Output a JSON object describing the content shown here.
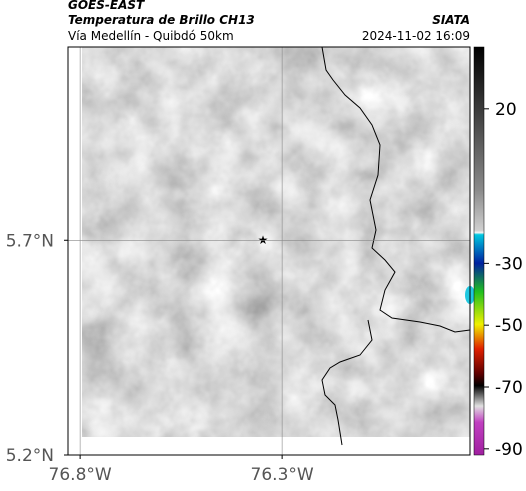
{
  "header": {
    "source": "GOES-EAST",
    "product": "Temperatura de Brillo CH13",
    "route": "Vía Medellín - Quibdó 50km",
    "agency": "SIATA",
    "datetime": "2024-11-02 16:09"
  },
  "map": {
    "xlim": [
      -76.83,
      -75.835
    ],
    "ylim": [
      5.2,
      6.15
    ],
    "xticks": [
      {
        "value": -76.8,
        "label": "76.8°W"
      },
      {
        "value": -76.3,
        "label": "76.3°W"
      }
    ],
    "yticks": [
      {
        "value": 5.7,
        "label": "5.7°N"
      },
      {
        "value": 5.2,
        "label": "5.2°N"
      }
    ],
    "grid": true
  },
  "colorbar": {
    "lim": [
      40,
      -92
    ],
    "ticks": [
      20,
      -30,
      -50,
      -70,
      -90
    ]
  }
}
